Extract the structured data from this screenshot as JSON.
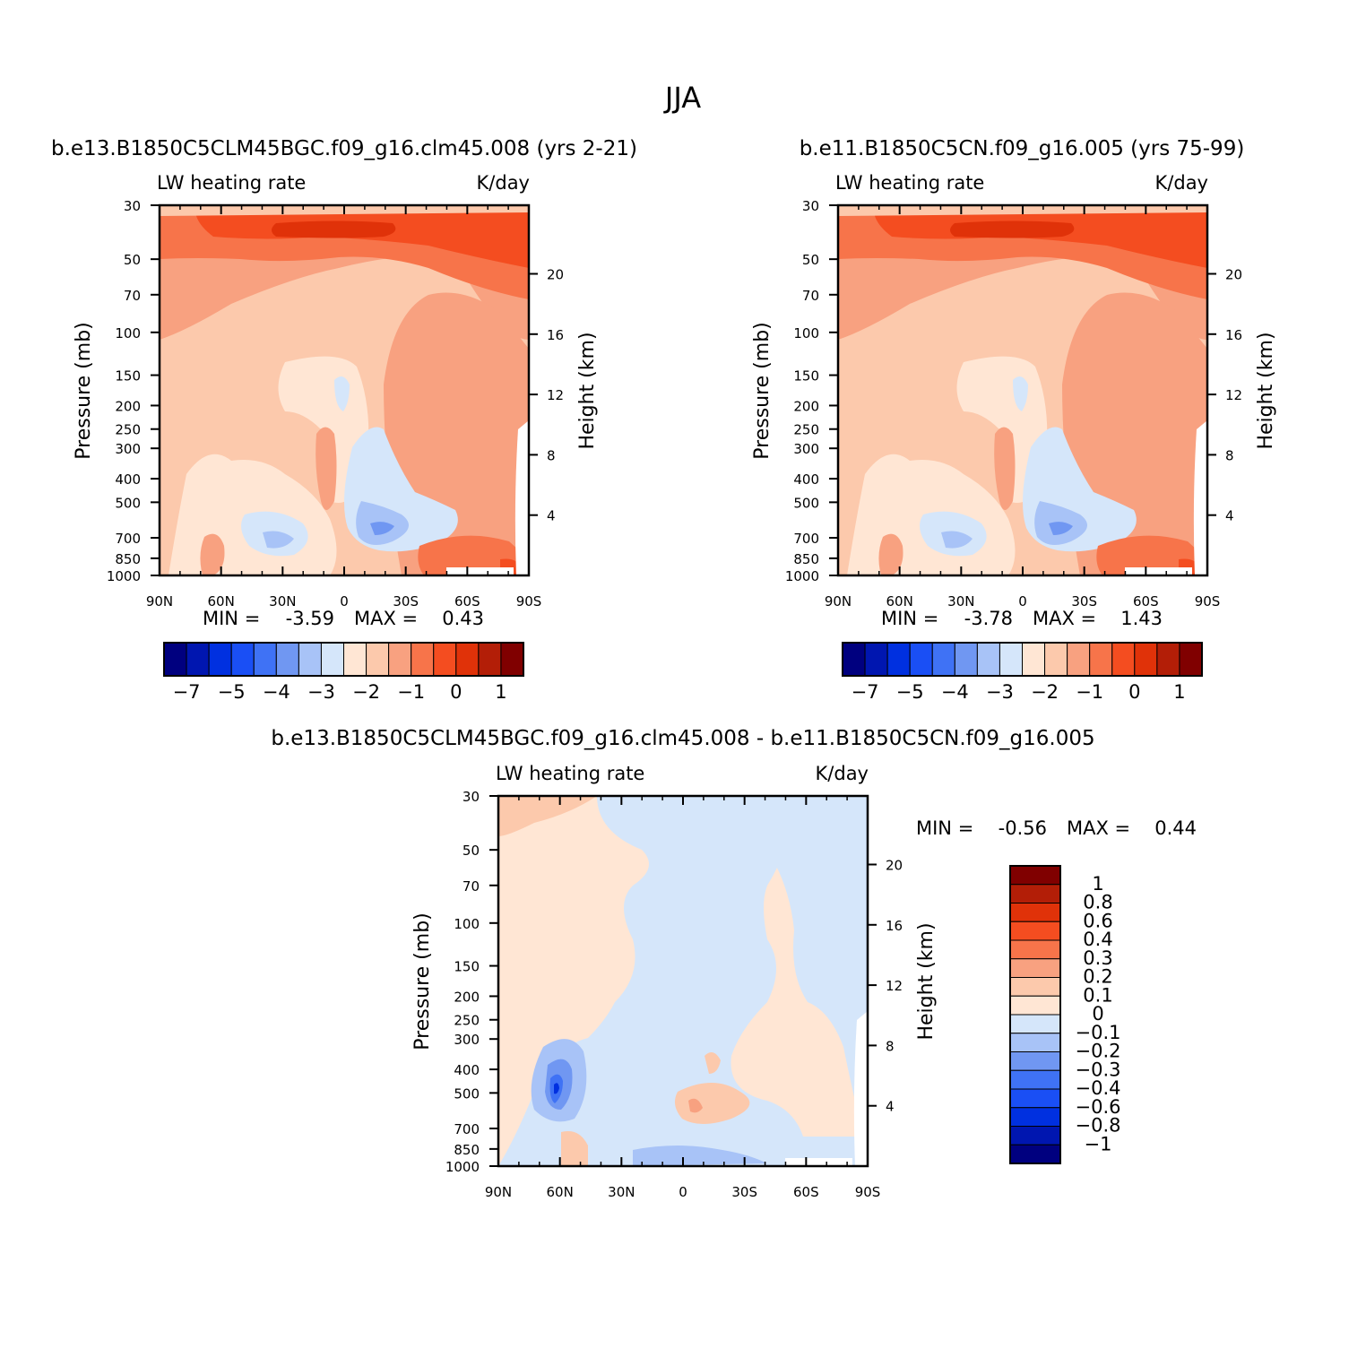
{
  "figure": {
    "title": "JJA",
    "panels": [
      {
        "case_title": "b.e13.B1850C5CLM45BGC.f09_g16.clm45.008 (yrs 2-21)",
        "left_label": "LW heating rate",
        "right_label": "K/day",
        "ylabel": "Pressure (mb)",
        "ylabel_right": "Height (km)",
        "stats": {
          "min_label": "MIN =",
          "min": "-3.59",
          "max_label": "MAX =",
          "max": "0.43"
        }
      },
      {
        "case_title": "b.e11.B1850C5CN.f09_g16.005 (yrs 75-99)",
        "left_label": "LW heating rate",
        "right_label": "K/day",
        "ylabel": "Pressure (mb)",
        "ylabel_right": "Height (km)",
        "stats": {
          "min_label": "MIN =",
          "min": "-3.78",
          "max_label": "MAX =",
          "max": "1.43"
        }
      },
      {
        "case_title": "b.e13.B1850C5CLM45BGC.f09_g16.clm45.008 - b.e11.B1850C5CN.f09_g16.005",
        "left_label": "LW heating rate",
        "right_label": "K/day",
        "ylabel": "Pressure (mb)",
        "ylabel_right": "Height (km)",
        "stats": {
          "min_label": "MIN =",
          "min": "-0.56",
          "max_label": "MAX =",
          "max": "0.44"
        }
      }
    ]
  },
  "colors": {
    "palette": [
      "#00007f",
      "#0016b0",
      "#0030e0",
      "#1a4ff5",
      "#3f72f5",
      "#7097f2",
      "#a8c3f7",
      "#d5e6fa",
      "#ffe6d4",
      "#fcc9ac",
      "#f8a180",
      "#f7744a",
      "#f44d20",
      "#e03209",
      "#b31e07",
      "#800000"
    ]
  },
  "chart_data": [
    {
      "type": "contour",
      "panel": 0,
      "x_ticks": [
        "90N",
        "60N",
        "30N",
        "0",
        "30S",
        "60S",
        "90S"
      ],
      "x_range": [
        90,
        -90
      ],
      "y_ticks": [
        30,
        50,
        70,
        100,
        150,
        200,
        250,
        300,
        400,
        500,
        700,
        850,
        1000
      ],
      "y_range_mb": [
        30,
        1000
      ],
      "y_scale": "log",
      "y2_ticks_km": [
        20,
        16,
        12,
        8,
        4
      ],
      "colorbar": {
        "orientation": "horizontal",
        "labels": [
          "-7",
          "-5",
          "-4",
          "-3",
          "-2",
          "-1",
          "0",
          "1"
        ],
        "levels": [
          -7,
          -6,
          -5,
          -4.5,
          -4,
          -3.5,
          -3,
          -2.5,
          -2,
          -1.5,
          -1,
          -0.5,
          0,
          0.5,
          1
        ]
      },
      "min": -3.59,
      "max": 0.43
    },
    {
      "type": "contour",
      "panel": 1,
      "x_ticks": [
        "90N",
        "60N",
        "30N",
        "0",
        "30S",
        "60S",
        "90S"
      ],
      "x_range": [
        90,
        -90
      ],
      "y_ticks": [
        30,
        50,
        70,
        100,
        150,
        200,
        250,
        300,
        400,
        500,
        700,
        850,
        1000
      ],
      "y_range_mb": [
        30,
        1000
      ],
      "y_scale": "log",
      "y2_ticks_km": [
        20,
        16,
        12,
        8,
        4
      ],
      "colorbar": {
        "orientation": "horizontal",
        "labels": [
          "-7",
          "-5",
          "-4",
          "-3",
          "-2",
          "-1",
          "0",
          "1"
        ],
        "levels": [
          -7,
          -6,
          -5,
          -4.5,
          -4,
          -3.5,
          -3,
          -2.5,
          -2,
          -1.5,
          -1,
          -0.5,
          0,
          0.5,
          1
        ]
      },
      "min": -3.78,
      "max": 1.43
    },
    {
      "type": "contour",
      "panel": 2,
      "x_ticks": [
        "90N",
        "60N",
        "30N",
        "0",
        "30S",
        "60S",
        "90S"
      ],
      "x_range": [
        90,
        -90
      ],
      "y_ticks": [
        30,
        50,
        70,
        100,
        150,
        200,
        250,
        300,
        400,
        500,
        700,
        850,
        1000
      ],
      "y_range_mb": [
        30,
        1000
      ],
      "y_scale": "log",
      "y2_ticks_km": [
        20,
        16,
        12,
        8,
        4
      ],
      "colorbar": {
        "orientation": "vertical",
        "labels": [
          "1",
          "0.8",
          "0.6",
          "0.4",
          "0.3",
          "0.2",
          "0.1",
          "0",
          "-0.1",
          "-0.2",
          "-0.3",
          "-0.4",
          "-0.6",
          "-0.8",
          "-1"
        ]
      },
      "min": -0.56,
      "max": 0.44
    }
  ]
}
